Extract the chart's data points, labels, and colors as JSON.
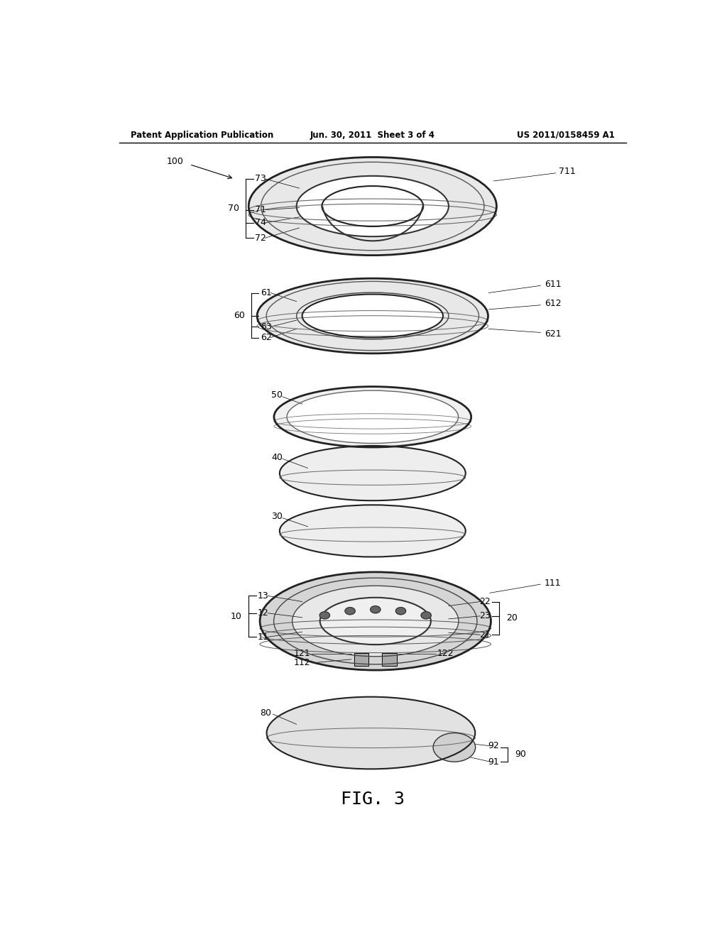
{
  "bg_color": "#ffffff",
  "header_left": "Patent Application Publication",
  "header_center": "Jun. 30, 2011  Sheet 3 of 4",
  "header_right": "US 2011/0158459 A1",
  "caption": "FIG. 3"
}
